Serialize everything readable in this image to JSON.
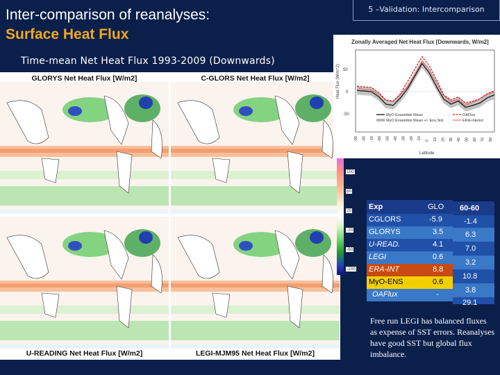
{
  "slide": {
    "title_line1": "Inter-comparison of reanalyses:",
    "title_line2": "Surface Heat Flux",
    "section": "5 –Validation: Intercomparison",
    "subtitle": "Time-mean Net Heat Flux 1993-2009 (Downwards)"
  },
  "maps": {
    "glorys": "GLORYS Net Heat Flux [W/m2]",
    "cglors": "C-GLORS Net Heat Flux [W/m2]",
    "ureading": "U-READING Net Heat Flux [W/m2]",
    "legi": "LEGI-MJM95 Net Heat Flux [W/m2]",
    "colorbar_ticks": [
      "100",
      "60",
      "20",
      "-20",
      "-60",
      "-100"
    ]
  },
  "chart": {
    "title": "Zonally Averaged Net Heat Flux [Downwards, W/m2]",
    "ylabel": "Heat Flux (W/m^2)",
    "xlabel": "Latitude",
    "yticks": [
      "50",
      "0",
      "-50"
    ],
    "xticks": [
      "-90",
      "-80",
      "-70",
      "-60",
      "-50",
      "-40",
      "-30",
      "-20",
      "-10",
      "0",
      "10",
      "20",
      "30",
      "40",
      "50",
      "60",
      "70",
      "80"
    ],
    "legend": {
      "myo_mean": "MyO Ensemble Mean",
      "myo_spread": "MyO Ensemble Mean +/- Ens.Std.",
      "oaflux": "OAFlux",
      "era": "ERA-Interim"
    },
    "colors": {
      "myo": "#222222",
      "spread": "#b0b0b0",
      "oaflux": "#d02020",
      "era": "#e87070"
    }
  },
  "table": {
    "headers": [
      "Exp",
      "GLO",
      "60-60"
    ],
    "rows": [
      {
        "exp": "CGLORS",
        "glo": "-5.9",
        "lat": "-1.4"
      },
      {
        "exp": "GLORYS",
        "glo": "3.5",
        "lat": "6.3"
      },
      {
        "exp": "U-READ.",
        "glo": "4.1",
        "lat": "7.0"
      },
      {
        "exp": "LEGI",
        "glo": "0.6",
        "lat": "3.2"
      },
      {
        "exp": "ERA-INT",
        "glo": "8.8",
        "lat": "10.8"
      },
      {
        "exp": "MyO-ENS",
        "glo": "0.6",
        "lat": "3.8"
      },
      {
        "exp": "OAFlux",
        "glo": "-",
        "lat": "29.1"
      }
    ]
  },
  "note": "Free run LEGI has balanced fluxes as expense of SST errors. Reanalyses have good SST but global flux imbalance."
}
